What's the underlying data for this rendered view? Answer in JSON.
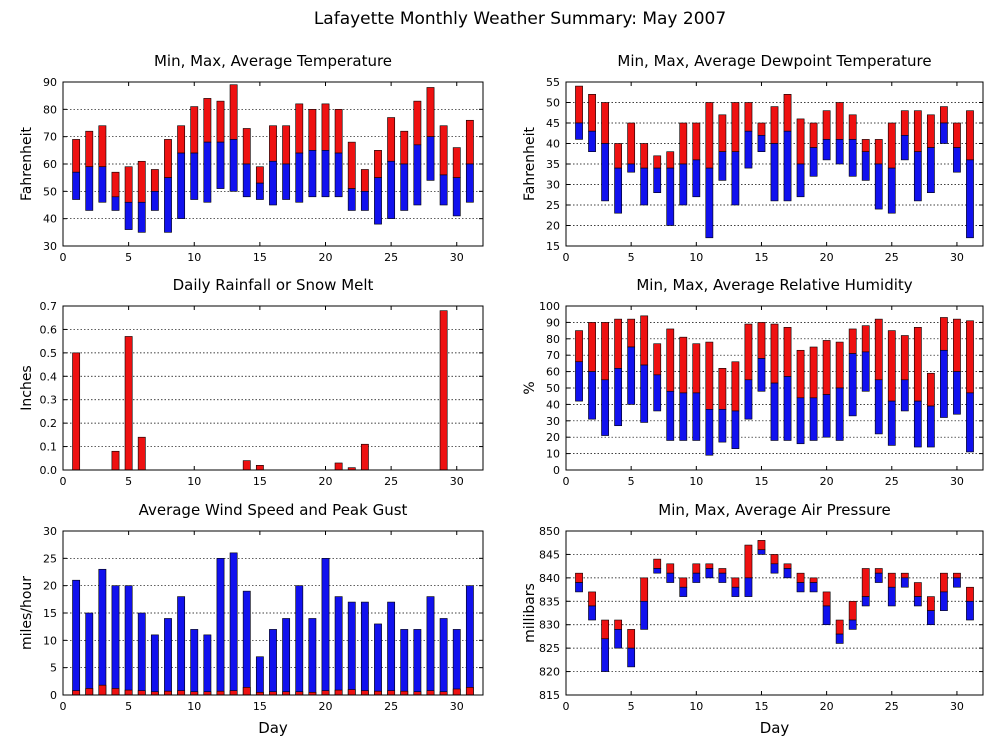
{
  "page_title": "Lafayette Monthly Weather Summary: May 2007",
  "colors": {
    "upper": "#ee1111",
    "lower": "#1111ee",
    "frame": "#000000"
  },
  "chart_data": [
    {
      "id": "temperature",
      "type": "bar",
      "title": "Min, Max, Average Temperature",
      "xlabel": "",
      "ylabel": "Fahrenheit",
      "xlim": [
        0,
        32
      ],
      "ylim": [
        30,
        90
      ],
      "x_ticks": [
        0,
        5,
        10,
        15,
        20,
        25,
        30
      ],
      "y_ticks": [
        30,
        40,
        50,
        60,
        70,
        80,
        90
      ],
      "grid": true,
      "days": [
        1,
        2,
        3,
        4,
        5,
        6,
        7,
        8,
        9,
        10,
        11,
        12,
        13,
        14,
        15,
        16,
        17,
        18,
        19,
        20,
        21,
        22,
        23,
        24,
        25,
        26,
        27,
        28,
        29,
        30,
        31
      ],
      "max": [
        69,
        72,
        74,
        57,
        59,
        61,
        58,
        69,
        74,
        81,
        84,
        83,
        89,
        73,
        59,
        74,
        74,
        82,
        80,
        82,
        80,
        68,
        58,
        65,
        77,
        72,
        83,
        88,
        74,
        66,
        76
      ],
      "avg": [
        57,
        59,
        59,
        48,
        46,
        46,
        50,
        55,
        64,
        64,
        68,
        68,
        69,
        60,
        53,
        61,
        60,
        64,
        65,
        65,
        64,
        51,
        50,
        55,
        61,
        60,
        67,
        70,
        56,
        55,
        60
      ],
      "min": [
        47,
        43,
        46,
        43,
        36,
        35,
        43,
        35,
        40,
        47,
        46,
        51,
        50,
        48,
        47,
        45,
        47,
        46,
        48,
        48,
        48,
        43,
        43,
        38,
        40,
        43,
        45,
        54,
        45,
        41,
        46
      ]
    },
    {
      "id": "dewpoint",
      "type": "bar",
      "title": "Min, Max, Average Dewpoint Temperature",
      "xlabel": "",
      "ylabel": "Fahrenheit",
      "xlim": [
        0,
        32
      ],
      "ylim": [
        15,
        55
      ],
      "x_ticks": [
        0,
        5,
        10,
        15,
        20,
        25,
        30
      ],
      "y_ticks": [
        15,
        20,
        25,
        30,
        35,
        40,
        45,
        50,
        55
      ],
      "grid": true,
      "days": [
        1,
        2,
        3,
        4,
        5,
        6,
        7,
        8,
        9,
        10,
        11,
        12,
        13,
        14,
        15,
        16,
        17,
        18,
        19,
        20,
        21,
        22,
        23,
        24,
        25,
        26,
        27,
        28,
        29,
        30,
        31
      ],
      "max": [
        54,
        52,
        50,
        40,
        45,
        40,
        37,
        38,
        45,
        45,
        50,
        47,
        50,
        50,
        45,
        49,
        52,
        46,
        45,
        48,
        50,
        47,
        41,
        41,
        45,
        48,
        48,
        47,
        49,
        45,
        48
      ],
      "avg": [
        45,
        43,
        40,
        34,
        35,
        34,
        34,
        34,
        35,
        36,
        34,
        38,
        38,
        43,
        42,
        40,
        43,
        35,
        39,
        41,
        41,
        41,
        38,
        35,
        34,
        42,
        38,
        39,
        45,
        39,
        36
      ],
      "min": [
        41,
        38,
        26,
        23,
        33,
        25,
        28,
        20,
        25,
        27,
        17,
        31,
        25,
        34,
        38,
        26,
        26,
        27,
        32,
        36,
        35,
        32,
        31,
        24,
        23,
        36,
        26,
        28,
        40,
        33,
        17
      ]
    },
    {
      "id": "rainfall",
      "type": "bar",
      "title": "Daily Rainfall or Snow Melt",
      "xlabel": "",
      "ylabel": "Inches",
      "xlim": [
        0,
        32
      ],
      "ylim": [
        0.0,
        0.7
      ],
      "x_ticks": [
        0,
        5,
        10,
        15,
        20,
        25,
        30
      ],
      "y_ticks": [
        0.0,
        0.1,
        0.2,
        0.3,
        0.4,
        0.5,
        0.6,
        0.7
      ],
      "y_tick_labels": [
        "0.0",
        "0.1",
        "0.2",
        "0.3",
        "0.4",
        "0.5",
        "0.6",
        "0.7"
      ],
      "grid": true,
      "days": [
        1,
        2,
        3,
        4,
        5,
        6,
        7,
        8,
        9,
        10,
        11,
        12,
        13,
        14,
        15,
        16,
        17,
        18,
        19,
        20,
        21,
        22,
        23,
        24,
        25,
        26,
        27,
        28,
        29,
        30,
        31
      ],
      "values": [
        0.5,
        0,
        0,
        0.08,
        0.57,
        0.14,
        0,
        0,
        0,
        0,
        0,
        0,
        0,
        0.04,
        0.02,
        0,
        0,
        0,
        0,
        0,
        0.03,
        0.01,
        0.11,
        0,
        0,
        0,
        0,
        0,
        0.68,
        0,
        0
      ]
    },
    {
      "id": "humidity",
      "type": "bar",
      "title": "Min, Max, Average Relative Humidity",
      "xlabel": "",
      "ylabel": "%",
      "xlim": [
        0,
        32
      ],
      "ylim": [
        0,
        100
      ],
      "x_ticks": [
        0,
        5,
        10,
        15,
        20,
        25,
        30
      ],
      "y_ticks": [
        0,
        10,
        20,
        30,
        40,
        50,
        60,
        70,
        80,
        90,
        100
      ],
      "grid": true,
      "days": [
        1,
        2,
        3,
        4,
        5,
        6,
        7,
        8,
        9,
        10,
        11,
        12,
        13,
        14,
        15,
        16,
        17,
        18,
        19,
        20,
        21,
        22,
        23,
        24,
        25,
        26,
        27,
        28,
        29,
        30,
        31
      ],
      "max": [
        85,
        90,
        90,
        92,
        92,
        94,
        77,
        86,
        81,
        77,
        78,
        62,
        66,
        89,
        90,
        89,
        87,
        73,
        75,
        79,
        78,
        86,
        88,
        92,
        85,
        82,
        87,
        59,
        93,
        92,
        91
      ],
      "avg": [
        66,
        60,
        55,
        62,
        75,
        64,
        58,
        48,
        47,
        47,
        37,
        37,
        36,
        55,
        68,
        53,
        57,
        44,
        44,
        46,
        50,
        71,
        72,
        55,
        42,
        55,
        42,
        39,
        73,
        60,
        47
      ],
      "min": [
        42,
        31,
        21,
        27,
        40,
        29,
        36,
        18,
        18,
        18,
        9,
        17,
        13,
        31,
        48,
        18,
        18,
        16,
        18,
        20,
        18,
        33,
        48,
        22,
        15,
        36,
        14,
        14,
        32,
        34,
        11
      ]
    },
    {
      "id": "wind",
      "type": "bar",
      "title": "Average Wind Speed and Peak Gust",
      "xlabel": "Day",
      "ylabel": "miles/hour",
      "xlim": [
        0,
        32
      ],
      "ylim": [
        0,
        30
      ],
      "x_ticks": [
        0,
        5,
        10,
        15,
        20,
        25,
        30
      ],
      "y_ticks": [
        0,
        5,
        10,
        15,
        20,
        25,
        30
      ],
      "grid": true,
      "days": [
        1,
        2,
        3,
        4,
        5,
        6,
        7,
        8,
        9,
        10,
        11,
        12,
        13,
        14,
        15,
        16,
        17,
        18,
        19,
        20,
        21,
        22,
        23,
        24,
        25,
        26,
        27,
        28,
        29,
        30,
        31
      ],
      "peak_gust": [
        21,
        15,
        23,
        20,
        20,
        15,
        11,
        14,
        18,
        12,
        11,
        25,
        26,
        19,
        7,
        12,
        14,
        20,
        14,
        25,
        18,
        17,
        17,
        13,
        17,
        12,
        12,
        18,
        14,
        12,
        20
      ],
      "avg_speed": [
        0.8,
        1.2,
        1.8,
        1.2,
        0.9,
        0.8,
        0.6,
        0.7,
        0.8,
        0.6,
        0.6,
        0.7,
        0.8,
        1.4,
        0.5,
        0.6,
        0.6,
        0.6,
        0.5,
        0.8,
        0.9,
        1.0,
        0.8,
        0.7,
        0.8,
        0.7,
        0.6,
        0.8,
        0.6,
        1.1,
        1.4
      ]
    },
    {
      "id": "pressure",
      "type": "bar",
      "title": "Min, Max, Average Air Pressure",
      "xlabel": "Day",
      "ylabel": "millibars",
      "xlim": [
        0,
        32
      ],
      "ylim": [
        815,
        850
      ],
      "x_ticks": [
        0,
        5,
        10,
        15,
        20,
        25,
        30
      ],
      "y_ticks": [
        815,
        820,
        825,
        830,
        835,
        840,
        845,
        850
      ],
      "grid": true,
      "days": [
        1,
        2,
        3,
        4,
        5,
        6,
        7,
        8,
        9,
        10,
        11,
        12,
        13,
        14,
        15,
        16,
        17,
        18,
        19,
        20,
        21,
        22,
        23,
        24,
        25,
        26,
        27,
        28,
        29,
        30,
        31
      ],
      "max": [
        841,
        837,
        831,
        831,
        829,
        840,
        844,
        843,
        840,
        843,
        843,
        842,
        840,
        847,
        848,
        845,
        843,
        841,
        840,
        837,
        831,
        835,
        842,
        842,
        841,
        841,
        839,
        836,
        841,
        841,
        838
      ],
      "avg": [
        839,
        834,
        827,
        829,
        825,
        835,
        842,
        841,
        838,
        841,
        842,
        841,
        838,
        840,
        846,
        843,
        842,
        839,
        839,
        834,
        828,
        831,
        836,
        841,
        838,
        840,
        836,
        833,
        837,
        840,
        835
      ],
      "min": [
        837,
        831,
        820,
        825,
        821,
        829,
        841,
        839,
        836,
        839,
        840,
        839,
        836,
        836,
        845,
        841,
        840,
        837,
        837,
        830,
        826,
        829,
        834,
        839,
        834,
        838,
        834,
        830,
        833,
        838,
        831
      ]
    }
  ]
}
